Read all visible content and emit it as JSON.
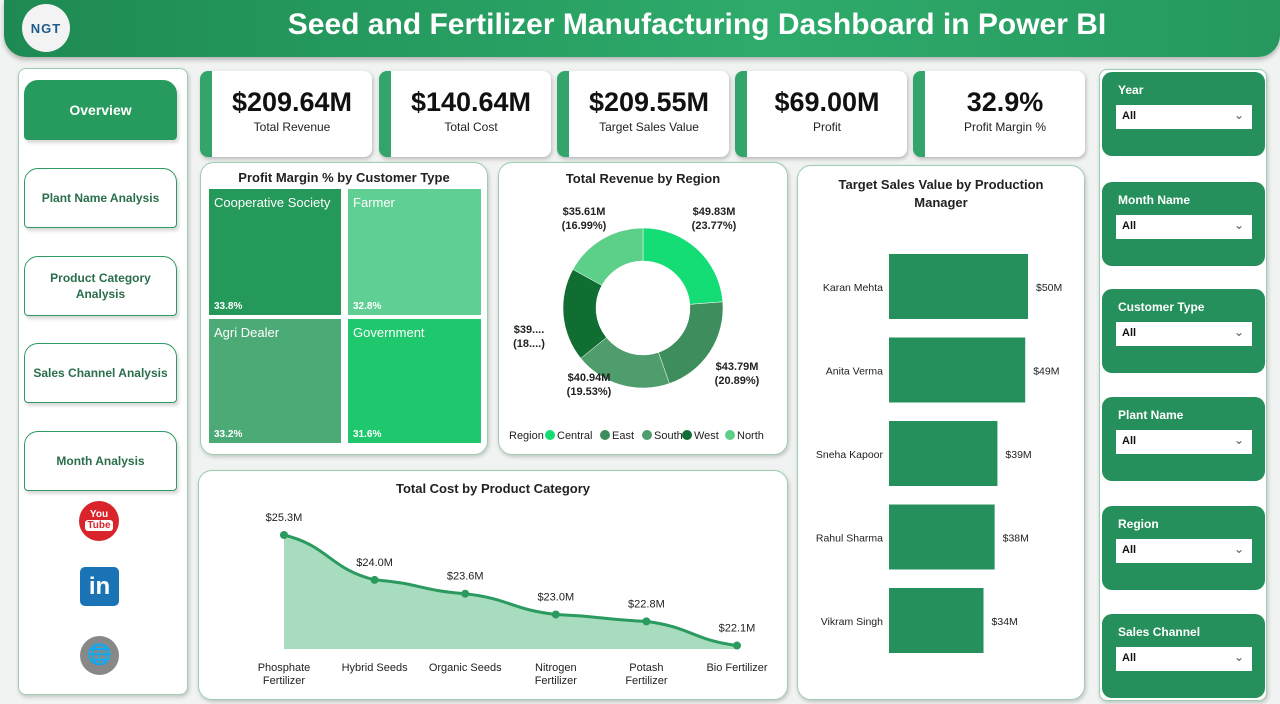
{
  "header": {
    "title": "Seed and Fertilizer Manufacturing Dashboard in Power BI",
    "logo_text": "NGT"
  },
  "nav": {
    "items": [
      {
        "label": "Overview",
        "active": true
      },
      {
        "label": "Plant Name Analysis"
      },
      {
        "label": "Product Category Analysis"
      },
      {
        "label": "Sales Channel Analysis"
      },
      {
        "label": "Month Analysis"
      }
    ],
    "social": [
      {
        "icon": "youtube-icon",
        "label": "You Tube"
      },
      {
        "icon": "linkedin-icon",
        "label": "in"
      },
      {
        "icon": "globe-www-icon",
        "label": "www"
      }
    ]
  },
  "kpis": [
    {
      "value": "$209.64M",
      "label": "Total Revenue"
    },
    {
      "value": "$140.64M",
      "label": "Total Cost"
    },
    {
      "value": "$209.55M",
      "label": "Target Sales Value"
    },
    {
      "value": "$69.00M",
      "label": "Profit"
    },
    {
      "value": "32.9%",
      "label": "Profit Margin %"
    }
  ],
  "treemap": {
    "title": "Profit Margin % by Customer Type",
    "tiles": [
      {
        "name": "Cooperative Society",
        "value": "33.8%",
        "color": "#24995a"
      },
      {
        "name": "Farmer",
        "value": "32.8%",
        "color": "#5fcf93"
      },
      {
        "name": "Agri Dealer",
        "value": "33.2%",
        "color": "#4caa77"
      },
      {
        "name": "Government",
        "value": "31.6%",
        "color": "#1fc86c"
      }
    ]
  },
  "chart_data": [
    {
      "type": "pie",
      "title": "Total Revenue by Region",
      "legend_title": "Region",
      "legend_position": "bottom",
      "donut": true,
      "categories": [
        "Central",
        "East",
        "South",
        "West",
        "North"
      ],
      "values": [
        49.83,
        43.79,
        40.94,
        39.47,
        35.61
      ],
      "labels": [
        "$49.83M\n(23.77%)",
        "$43.79M\n(20.89%)",
        "$40.94M\n(19.53%)",
        "$39....\n(18....)",
        "$35.61M\n(16.99%)"
      ],
      "colors": [
        "#14dd75",
        "#3e8e5d",
        "#4f9d6c",
        "#116e32",
        "#5ccf88"
      ]
    },
    {
      "type": "bar",
      "orientation": "horizontal",
      "title": "Target Sales Value by Production Manager",
      "categories": [
        "Karan Mehta",
        "Anita Verma",
        "Sneha Kapoor",
        "Rahul Sharma",
        "Vikram Singh"
      ],
      "values": [
        50,
        49,
        39,
        38,
        34
      ],
      "labels": [
        "$50M",
        "$49M",
        "$39M",
        "$38M",
        "$34M"
      ],
      "color": "#26905c"
    },
    {
      "type": "area",
      "title": "Total Cost by Product Category",
      "categories": [
        "Phosphate Fertilizer",
        "Hybrid Seeds",
        "Organic Seeds",
        "Nitrogen Fertilizer",
        "Potash Fertilizer",
        "Bio Fertilizer"
      ],
      "values": [
        25.3,
        24.0,
        23.6,
        23.0,
        22.8,
        22.1
      ],
      "labels": [
        "$25.3M",
        "$24.0M",
        "$23.6M",
        "$23.0M",
        "$22.8M",
        "$22.1M"
      ],
      "color": "#2a9a5f",
      "fill": "#a8dcbf"
    }
  ],
  "slicers": [
    {
      "title": "Year",
      "value": "All"
    },
    {
      "title": "Month Name",
      "value": "All"
    },
    {
      "title": "Customer Type",
      "value": "All"
    },
    {
      "title": "Plant Name",
      "value": "All"
    },
    {
      "title": "Region",
      "value": "All"
    },
    {
      "title": "Sales Channel",
      "value": "All"
    }
  ]
}
